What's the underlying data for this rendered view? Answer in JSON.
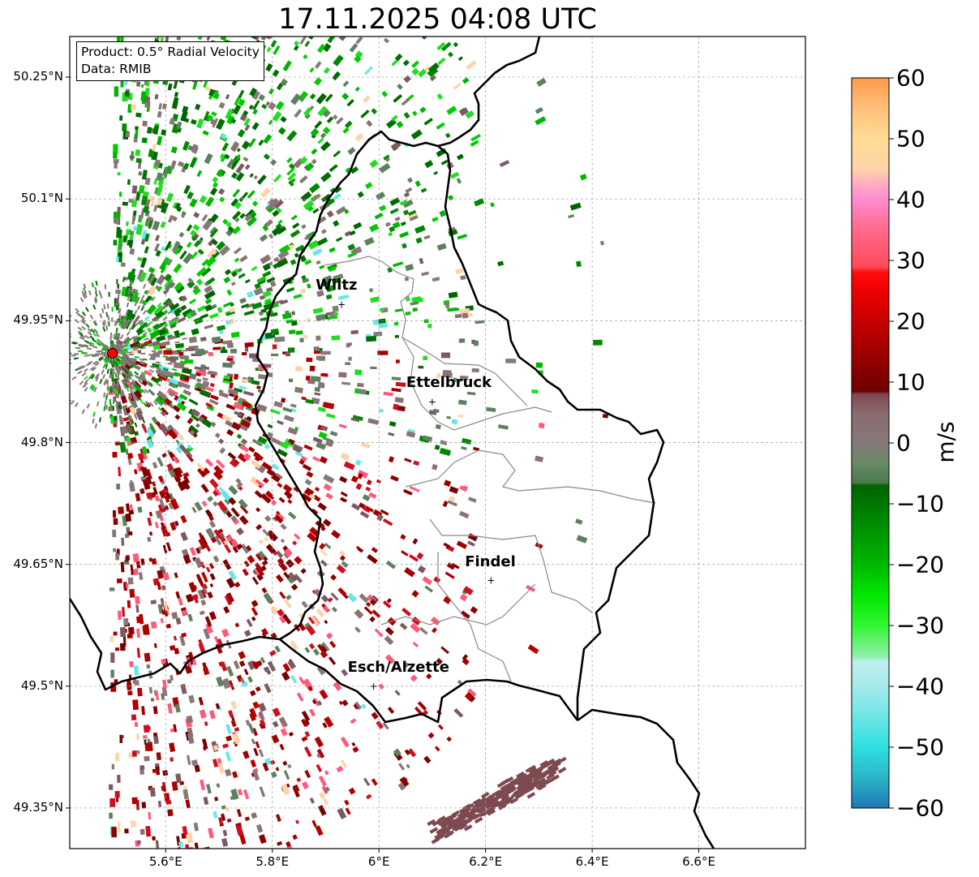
{
  "title": "17.11.2025 04:08 UTC",
  "info_box": {
    "product": "Product: 0.5° Radial Velocity",
    "source": "Data: RMIB"
  },
  "map": {
    "lat_labels": [
      "50.25°N",
      "50.1°N",
      "49.95°N",
      "49.8°N",
      "49.65°N",
      "49.5°N",
      "49.35°N"
    ],
    "lat_values": [
      50.25,
      50.1,
      49.95,
      49.8,
      49.65,
      49.5,
      49.35
    ],
    "lon_labels": [
      "5.6°E",
      "5.8°E",
      "6°E",
      "6.2°E",
      "6.4°E",
      "6.6°E"
    ],
    "lon_values": [
      5.6,
      5.8,
      6.0,
      6.2,
      6.4,
      6.6
    ],
    "extent": {
      "lon_min": 5.42,
      "lon_max": 6.8,
      "lat_min": 49.3,
      "lat_max": 50.3
    },
    "gridlines": true,
    "cities": [
      {
        "name": "Wiltz",
        "lon": 5.93,
        "lat": 49.97
      },
      {
        "name": "Ettelbruck",
        "lon": 6.1,
        "lat": 49.85
      },
      {
        "name": "Findel",
        "lon": 6.21,
        "lat": 49.63
      },
      {
        "name": "Esch/Alzette",
        "lon": 5.99,
        "lat": 49.5
      }
    ],
    "radar_site": {
      "lon": 5.5,
      "lat": 49.91,
      "marker_color": "#ff0000"
    }
  },
  "colorbar": {
    "label": "m/s",
    "min": -60,
    "max": 60,
    "ticks": [
      "60",
      "50",
      "40",
      "30",
      "20",
      "10",
      "0",
      "−10",
      "−20",
      "−30",
      "−40",
      "−50",
      "−60"
    ],
    "tick_values": [
      60,
      50,
      40,
      30,
      20,
      10,
      0,
      -10,
      -20,
      -30,
      -40,
      -50,
      -60
    ],
    "stops": [
      {
        "v": -60,
        "c": "#1f78b4"
      },
      {
        "v": -55,
        "c": "#2bb5c9"
      },
      {
        "v": -50,
        "c": "#2ee0e0"
      },
      {
        "v": -45,
        "c": "#6fe6e6"
      },
      {
        "v": -40,
        "c": "#a6eaea"
      },
      {
        "v": -36,
        "c": "#c0f0f0"
      },
      {
        "v": -35,
        "c": "#8ef0a8"
      },
      {
        "v": -30,
        "c": "#33f533"
      },
      {
        "v": -25,
        "c": "#00e800"
      },
      {
        "v": -20,
        "c": "#00b800"
      },
      {
        "v": -13,
        "c": "#008a00"
      },
      {
        "v": -7,
        "c": "#006400"
      },
      {
        "v": -6.5,
        "c": "#4d7a4d"
      },
      {
        "v": -3,
        "c": "#6a8a6a"
      },
      {
        "v": 0,
        "c": "#877979"
      },
      {
        "v": 5,
        "c": "#8a6a70"
      },
      {
        "v": 8,
        "c": "#7d4a50"
      },
      {
        "v": 8.5,
        "c": "#6e0000"
      },
      {
        "v": 15,
        "c": "#a00000"
      },
      {
        "v": 25,
        "c": "#ee0000"
      },
      {
        "v": 28,
        "c": "#ff0a0a"
      },
      {
        "v": 29,
        "c": "#ff4a5a"
      },
      {
        "v": 35,
        "c": "#ff6a8a"
      },
      {
        "v": 40,
        "c": "#ff8ad0"
      },
      {
        "v": 43,
        "c": "#ffb3c0"
      },
      {
        "v": 45,
        "c": "#ffd3a8"
      },
      {
        "v": 50,
        "c": "#ffdc96"
      },
      {
        "v": 55,
        "c": "#ffc07a"
      },
      {
        "v": 60,
        "c": "#ff9a4a"
      }
    ]
  },
  "colors": {
    "receding_dark": "#7a0000",
    "receding_mid": "#a00000",
    "approaching_dark": "#006600",
    "approaching_mid": "#00b400",
    "near_zero": "#877979",
    "near_zero_green": "#5f8060",
    "border": "#000000",
    "district_border": "#888888"
  }
}
